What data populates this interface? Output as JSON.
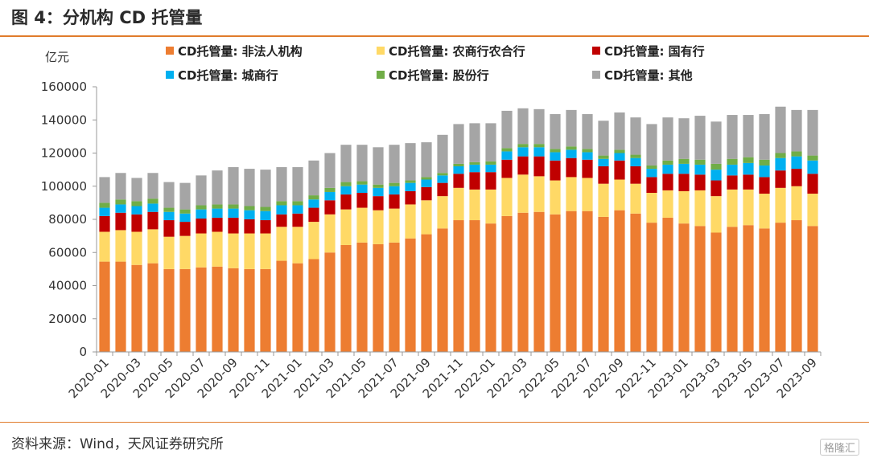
{
  "header": {
    "title": "图 4：分机构 CD 托管量"
  },
  "footer": {
    "source": "资料来源：Wind，天风证券研究所",
    "watermark": "格隆汇"
  },
  "chart_data": {
    "type": "bar",
    "stacked": true,
    "yunit": "亿元",
    "ylim": [
      0,
      160000
    ],
    "yticks": [
      "0",
      "20000",
      "40000",
      "60000",
      "80000",
      "100000",
      "120000",
      "140000",
      "160000"
    ],
    "grid": false,
    "legend_position": "top",
    "categories": [
      "2020-01",
      "2020-02",
      "2020-03",
      "2020-04",
      "2020-05",
      "2020-06",
      "2020-07",
      "2020-08",
      "2020-09",
      "2020-10",
      "2020-11",
      "2020-12",
      "2021-01",
      "2021-02",
      "2021-03",
      "2021-04",
      "2021-05",
      "2021-06",
      "2021-07",
      "2021-08",
      "2021-09",
      "2021-10",
      "2021-11",
      "2021-12",
      "2022-01",
      "2022-02",
      "2022-03",
      "2022-04",
      "2022-05",
      "2022-06",
      "2022-07",
      "2022-08",
      "2022-09",
      "2022-10",
      "2022-11",
      "2022-12",
      "2023-01",
      "2023-02",
      "2023-03",
      "2023-04",
      "2023-05",
      "2023-06",
      "2023-07",
      "2023-08",
      "2023-09"
    ],
    "xtick_labels": [
      "2020-01",
      "2020-03",
      "2020-05",
      "2020-07",
      "2020-09",
      "2020-11",
      "2021-01",
      "2021-03",
      "2021-05",
      "2021-07",
      "2021-09",
      "2021-11",
      "2022-01",
      "2022-03",
      "2022-05",
      "2022-07",
      "2022-09",
      "2022-11",
      "2023-01",
      "2023-03",
      "2023-05",
      "2023-07",
      "2023-09"
    ],
    "series": [
      {
        "name": "CD托管量: 非法人机构",
        "color": "#ed7d31",
        "values": [
          54500,
          54500,
          52500,
          53500,
          50000,
          50000,
          51000,
          51500,
          50500,
          50000,
          50000,
          55000,
          53500,
          56000,
          60000,
          64500,
          66000,
          65000,
          66000,
          68500,
          71000,
          74500,
          79500,
          79500,
          77500,
          82000,
          84000,
          84500,
          83000,
          85000,
          85000,
          81500,
          85500,
          83500,
          78000,
          81000,
          77500,
          76000,
          72000,
          75500,
          76500,
          74500,
          78000,
          79500,
          76000
        ]
      },
      {
        "name": "CD托管量: 农商行农合行",
        "color": "#ffd966",
        "values": [
          18000,
          19000,
          20000,
          20500,
          19500,
          20000,
          20500,
          21000,
          21000,
          21500,
          21500,
          20500,
          22000,
          22500,
          23000,
          21500,
          21000,
          20500,
          20500,
          20500,
          20500,
          19500,
          19500,
          18500,
          20500,
          23000,
          23000,
          21500,
          20500,
          20500,
          20000,
          20000,
          18500,
          18000,
          18000,
          16500,
          19500,
          21500,
          22000,
          22500,
          21500,
          21000,
          21000,
          20500,
          19500
        ]
      },
      {
        "name": "CD托管量: 国有行",
        "color": "#c00000",
        "values": [
          9500,
          10500,
          10500,
          10500,
          10000,
          8500,
          9000,
          8500,
          9500,
          8500,
          8000,
          7500,
          8000,
          8500,
          8500,
          9000,
          9000,
          8500,
          8500,
          8000,
          8000,
          8000,
          8500,
          10500,
          10500,
          11000,
          11000,
          12000,
          12000,
          11500,
          11000,
          10500,
          11500,
          10500,
          9500,
          10000,
          10500,
          9500,
          9500,
          8500,
          9000,
          10000,
          10500,
          10500,
          12000
        ]
      },
      {
        "name": "CD托管量: 城商行",
        "color": "#00b0f0",
        "values": [
          5000,
          5000,
          5000,
          5000,
          5000,
          5000,
          5500,
          5500,
          5500,
          5500,
          5500,
          5500,
          5000,
          5000,
          5000,
          5000,
          5000,
          5000,
          5000,
          5000,
          4500,
          4500,
          4500,
          4500,
          4500,
          5000,
          5500,
          5500,
          5000,
          5000,
          4500,
          4500,
          4500,
          5000,
          5000,
          5500,
          6000,
          6000,
          6500,
          6500,
          7000,
          7000,
          7500,
          7500,
          8000
        ]
      },
      {
        "name": "CD托管量: 股份行",
        "color": "#70ad47",
        "values": [
          3000,
          3000,
          3000,
          3000,
          2500,
          2500,
          2500,
          2500,
          2500,
          2500,
          2500,
          2500,
          2500,
          2500,
          2500,
          2500,
          2000,
          2000,
          2000,
          1500,
          1500,
          1500,
          1500,
          1500,
          2000,
          2000,
          2000,
          2000,
          2000,
          2000,
          2000,
          2000,
          2000,
          2000,
          2000,
          2500,
          3000,
          3000,
          3500,
          3500,
          3500,
          3500,
          3000,
          3000,
          3000
        ]
      },
      {
        "name": "CD托管量: 其他",
        "color": "#a5a5a5",
        "values": [
          15500,
          16000,
          14000,
          15500,
          15500,
          16000,
          18000,
          20500,
          22500,
          22500,
          22500,
          20500,
          20500,
          21000,
          21000,
          22500,
          22000,
          22500,
          23000,
          22500,
          21000,
          23000,
          24000,
          23500,
          23000,
          22500,
          21500,
          21000,
          21000,
          22000,
          21000,
          21000,
          22500,
          22500,
          25000,
          26000,
          24500,
          26500,
          25500,
          26500,
          25500,
          27500,
          28000,
          25000,
          27500
        ]
      }
    ]
  }
}
